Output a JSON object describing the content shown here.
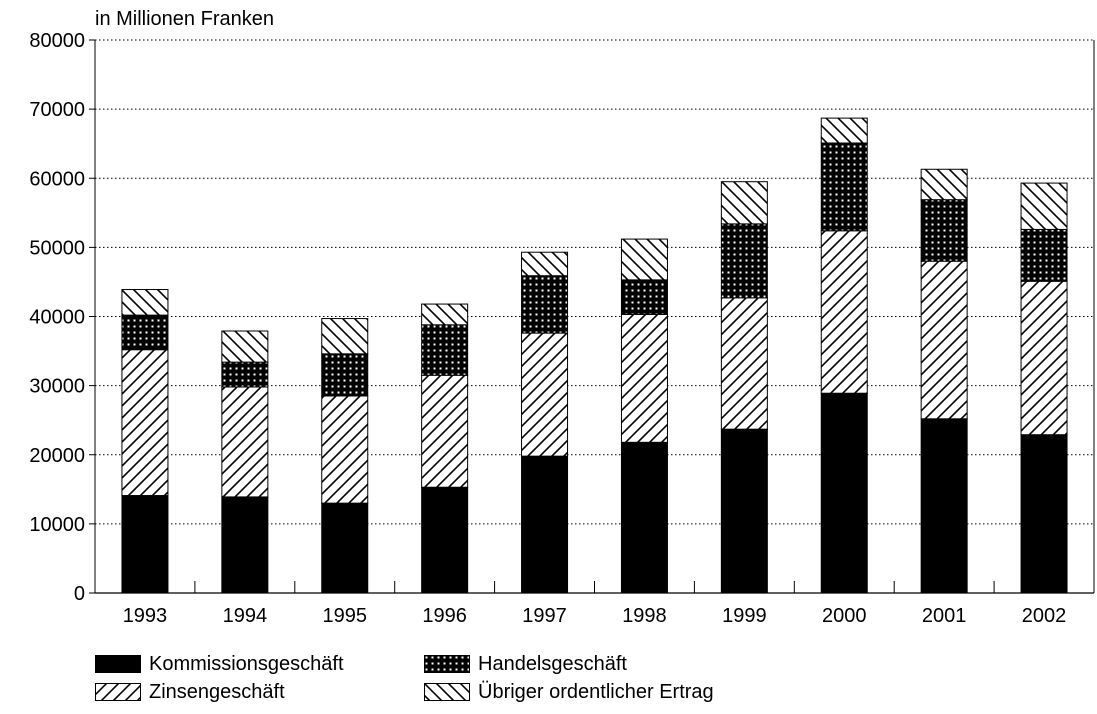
{
  "chart_data": {
    "type": "bar",
    "stacked": true,
    "unit_label": "in Millionen Franken",
    "categories": [
      "1993",
      "1994",
      "1995",
      "1996",
      "1997",
      "1998",
      "1999",
      "2000",
      "2001",
      "2002"
    ],
    "series": [
      {
        "name": "Kommissionsgeschäft",
        "pattern": "solid",
        "values": [
          14100,
          13900,
          13000,
          15300,
          19800,
          21800,
          23700,
          28900,
          25200,
          22900
        ]
      },
      {
        "name": "Zinsengeschäft",
        "pattern": "diagonal-forward",
        "values": [
          21100,
          15900,
          15500,
          16200,
          17800,
          18500,
          19000,
          23500,
          22800,
          22200
        ]
      },
      {
        "name": "Handelsgeschäft",
        "pattern": "dots",
        "values": [
          5000,
          3600,
          6100,
          7300,
          8300,
          5000,
          10700,
          12700,
          8900,
          7500
        ]
      },
      {
        "name": "Übriger ordentlicher Ertrag",
        "pattern": "diagonal-backward",
        "values": [
          3700,
          4500,
          5100,
          3000,
          3400,
          5900,
          6100,
          3600,
          4400,
          6700
        ]
      }
    ],
    "ylim": [
      0,
      80000
    ],
    "yticks": [
      "0",
      "10000",
      "20000",
      "30000",
      "40000",
      "50000",
      "60000",
      "70000",
      "80000"
    ],
    "grid": "horizontal dotted",
    "legend_position": "bottom",
    "colors": {
      "bar_fill": "#000000",
      "background": "#ffffff"
    }
  }
}
